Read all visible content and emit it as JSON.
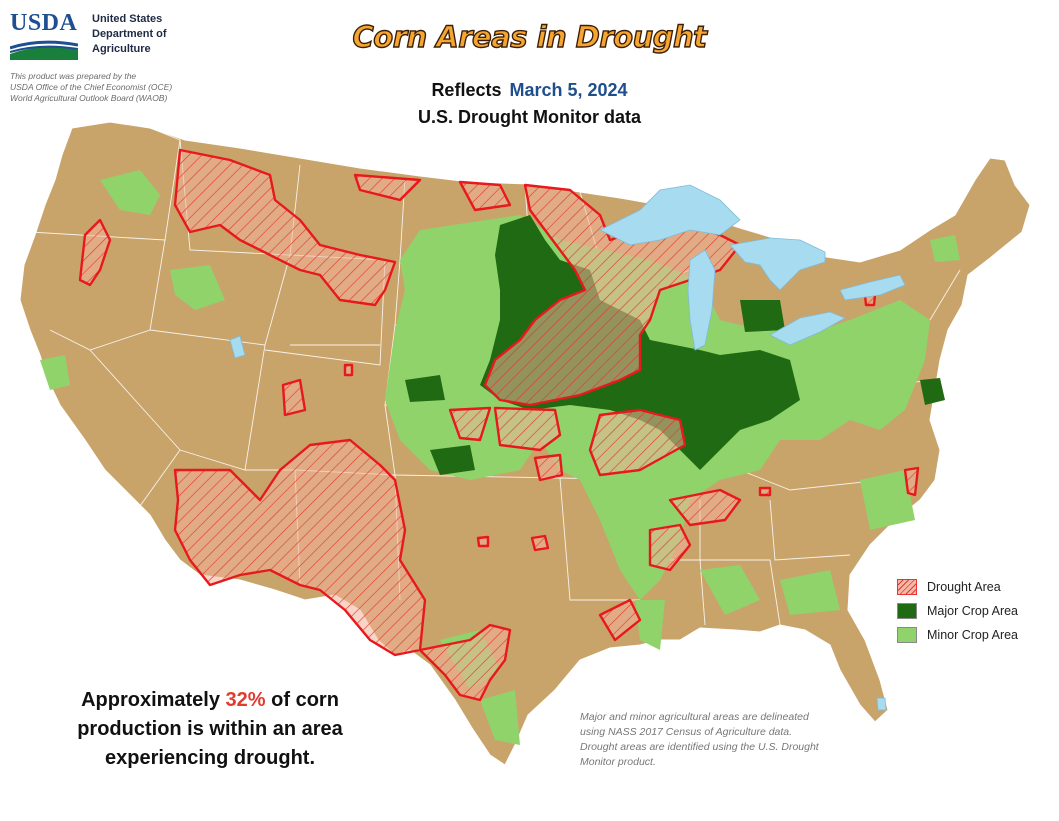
{
  "header": {
    "logo_text": "USDA",
    "department": "United States\nDepartment of\nAgriculture",
    "prepared_by": "This product was prepared by the\nUSDA Office of the Chief Economist (OCE)\nWorld Agricultural Outlook Board (WAOB)"
  },
  "title": "Corn Areas in Drought",
  "subtitle": {
    "reflects_label": "Reflects",
    "date": "March 5, 2024",
    "source_line": "U.S. Drought Monitor data"
  },
  "legend": {
    "items": [
      {
        "label": "Drought Area",
        "color": "#e23b2e"
      },
      {
        "label": "Major Crop Area",
        "color": "#1f6a12"
      },
      {
        "label": "Minor Crop Area",
        "color": "#8fd36a"
      }
    ]
  },
  "stat": {
    "prefix": "Approximately ",
    "percent": "32%",
    "suffix": " of corn production is within an area experiencing drought."
  },
  "note": "Major and minor agricultural areas are delineated using NASS 2017 Census of Agriculture data.  Drought areas are identified using the U.S. Drought Monitor product.",
  "colors": {
    "land": "#c9a46a",
    "water": "#a6dbf0",
    "drought_outline": "#e8191c",
    "major_crop": "#1f6a12",
    "minor_crop": "#8fd36a"
  }
}
